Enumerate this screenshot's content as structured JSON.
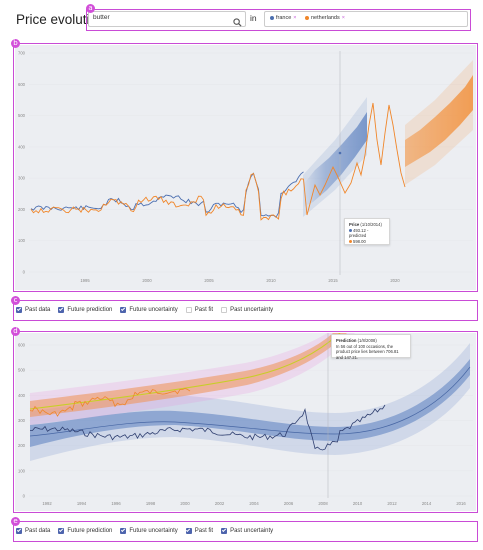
{
  "header": {
    "title": "Price evolution of",
    "search_value": "butter",
    "in_label": "in",
    "countries": [
      {
        "name": "france",
        "color": "#4c6fb0"
      },
      {
        "name": "netherlands",
        "color": "#f0862a"
      }
    ]
  },
  "markers": [
    "a",
    "b",
    "c",
    "d",
    "e"
  ],
  "top_chart": {
    "y_ticks": [
      "700",
      "600",
      "500",
      "400",
      "300",
      "200",
      "100",
      "0"
    ],
    "x_ticks": [
      "1995",
      "2000",
      "2005",
      "2010",
      "2015",
      "2020"
    ],
    "tooltip": {
      "title": "Price",
      "date": "(1/10/2014)",
      "line1": "493.12 - predicted",
      "line2": "598.00"
    },
    "controls": [
      {
        "label": "Past data",
        "checked": true
      },
      {
        "label": "Future prediction",
        "checked": true
      },
      {
        "label": "Future uncertainty",
        "checked": true
      },
      {
        "label": "Past fit",
        "checked": false
      },
      {
        "label": "Past uncertainty",
        "checked": false
      }
    ]
  },
  "bottom_chart": {
    "y_ticks": [
      "600",
      "500",
      "400",
      "300",
      "200",
      "100",
      "0"
    ],
    "x_ticks": [
      "1992",
      "1994",
      "1996",
      "1998",
      "2000",
      "2002",
      "2004",
      "2006",
      "2008",
      "2010",
      "2012",
      "2014",
      "2016"
    ],
    "tooltip": {
      "title": "Prediction",
      "date": "(1/8/2008)",
      "body": "In 56 out of 100 occasions, the product price lies between 706.81 and 147.21."
    },
    "controls": [
      {
        "label": "Past data",
        "checked": true
      },
      {
        "label": "Future prediction",
        "checked": true
      },
      {
        "label": "Future uncertainty",
        "checked": true
      },
      {
        "label": "Past fit",
        "checked": true
      },
      {
        "label": "Past uncertainty",
        "checked": true
      }
    ]
  },
  "colors": {
    "france": "#4c6fb0",
    "netherlands": "#f0862a",
    "highlight": "#c94bd6",
    "check": "#4d64ad"
  }
}
